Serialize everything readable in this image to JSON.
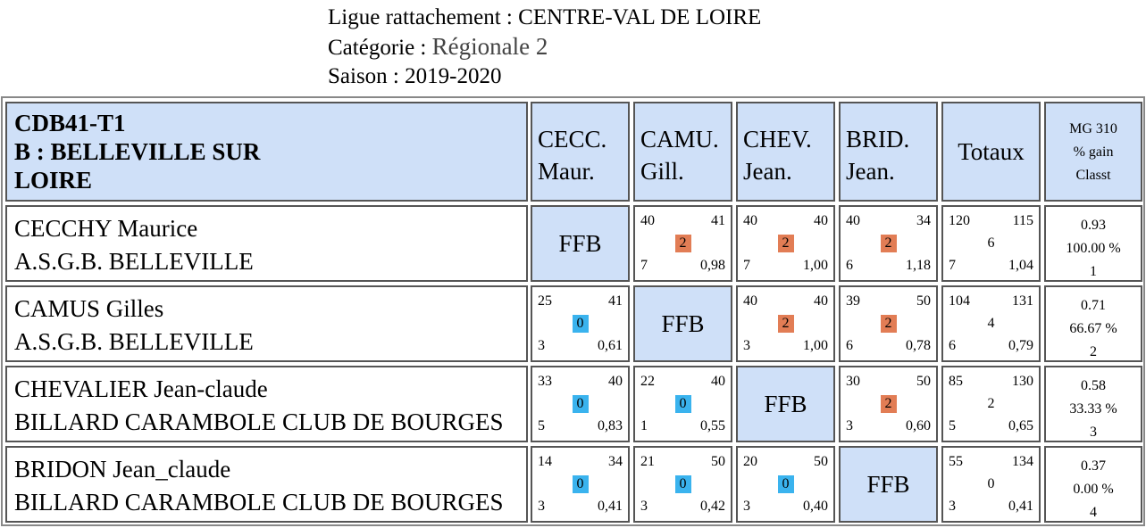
{
  "header": {
    "ligue_label": "Ligue rattachement : ",
    "ligue_value": "CENTRE-VAL DE LOIRE",
    "categorie_label": "Catégorie : ",
    "categorie_value": "Régionale 2",
    "saison_label": "Saison : ",
    "saison_value": "2019-2020"
  },
  "table": {
    "team_code": "CDB41-T1",
    "team_name_line1": "B : BELLEVILLE SUR",
    "team_name_line2": "LOIRE",
    "opponent_headers": [
      {
        "line1": "CECC.",
        "line2": "Maur."
      },
      {
        "line1": "CAMU.",
        "line2": "Gill."
      },
      {
        "line1": "CHEV.",
        "line2": "Jean."
      },
      {
        "line1": "BRID.",
        "line2": "Jean."
      }
    ],
    "totals_header": "Totaux",
    "mg_header": {
      "line1": "MG 310",
      "line2": "% gain",
      "line3": "Classt"
    },
    "ffb_label": "FFB",
    "colors": {
      "header_bg": "#cfe0f8",
      "win": "#e27d55",
      "loss": "#3ab3ee"
    },
    "rows": [
      {
        "name": "CECCHY Maurice",
        "club": "A.S.G.B. BELLEVILLE",
        "cells": [
          null,
          {
            "tl": "40",
            "tr": "41",
            "pts": "2",
            "bl": "7",
            "br": "0,98"
          },
          {
            "tl": "40",
            "tr": "40",
            "pts": "2",
            "bl": "7",
            "br": "1,00"
          },
          {
            "tl": "40",
            "tr": "34",
            "pts": "2",
            "bl": "6",
            "br": "1,18"
          }
        ],
        "totals": {
          "tl": "120",
          "tr": "115",
          "pts": "6",
          "bl": "7",
          "br": "1,04"
        },
        "mg": {
          "moyenne": "0.93",
          "gain": "100.00 %",
          "classt": "1"
        }
      },
      {
        "name": "CAMUS Gilles",
        "club": "A.S.G.B. BELLEVILLE",
        "cells": [
          {
            "tl": "25",
            "tr": "41",
            "pts": "0",
            "bl": "3",
            "br": "0,61"
          },
          null,
          {
            "tl": "40",
            "tr": "40",
            "pts": "2",
            "bl": "3",
            "br": "1,00"
          },
          {
            "tl": "39",
            "tr": "50",
            "pts": "2",
            "bl": "6",
            "br": "0,78"
          }
        ],
        "totals": {
          "tl": "104",
          "tr": "131",
          "pts": "4",
          "bl": "6",
          "br": "0,79"
        },
        "mg": {
          "moyenne": "0.71",
          "gain": "66.67 %",
          "classt": "2"
        }
      },
      {
        "name": "CHEVALIER Jean-claude",
        "club": "BILLARD CARAMBOLE CLUB DE BOURGES",
        "cells": [
          {
            "tl": "33",
            "tr": "40",
            "pts": "0",
            "bl": "5",
            "br": "0,83"
          },
          {
            "tl": "22",
            "tr": "40",
            "pts": "0",
            "bl": "1",
            "br": "0,55"
          },
          null,
          {
            "tl": "30",
            "tr": "50",
            "pts": "2",
            "bl": "3",
            "br": "0,60"
          }
        ],
        "totals": {
          "tl": "85",
          "tr": "130",
          "pts": "2",
          "bl": "5",
          "br": "0,65"
        },
        "mg": {
          "moyenne": "0.58",
          "gain": "33.33 %",
          "classt": "3"
        }
      },
      {
        "name": "BRIDON Jean_claude",
        "club": "BILLARD CARAMBOLE CLUB DE BOURGES",
        "cells": [
          {
            "tl": "14",
            "tr": "34",
            "pts": "0",
            "bl": "3",
            "br": "0,41"
          },
          {
            "tl": "21",
            "tr": "50",
            "pts": "0",
            "bl": "3",
            "br": "0,42"
          },
          {
            "tl": "20",
            "tr": "50",
            "pts": "0",
            "bl": "3",
            "br": "0,40"
          },
          null
        ],
        "totals": {
          "tl": "55",
          "tr": "134",
          "pts": "0",
          "bl": "3",
          "br": "0,41"
        },
        "mg": {
          "moyenne": "0.37",
          "gain": "0.00 %",
          "classt": "4"
        }
      }
    ]
  }
}
